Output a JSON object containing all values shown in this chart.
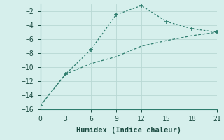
{
  "xlabel": "Humidex (Indice chaleur)",
  "line1_x": [
    0,
    3,
    6,
    9,
    12,
    15,
    18,
    21
  ],
  "line1_y": [
    -15.5,
    -11,
    -7.5,
    -2.5,
    -1.2,
    -3.5,
    -4.5,
    -5.0
  ],
  "line2_x": [
    0,
    3,
    6,
    9,
    12,
    15,
    18,
    21
  ],
  "line2_y": [
    -15.5,
    -11.0,
    -9.5,
    -8.5,
    -7.0,
    -6.2,
    -5.5,
    -5.0
  ],
  "color": "#2e7d6e",
  "bg_color": "#d6efec",
  "grid_color": "#b8d8d4",
  "xlim": [
    0,
    21
  ],
  "ylim": [
    -16,
    -1
  ],
  "xticks": [
    0,
    3,
    6,
    9,
    12,
    15,
    18,
    21
  ],
  "yticks": [
    -16,
    -14,
    -12,
    -10,
    -8,
    -6,
    -4,
    -2
  ],
  "marker": "+"
}
